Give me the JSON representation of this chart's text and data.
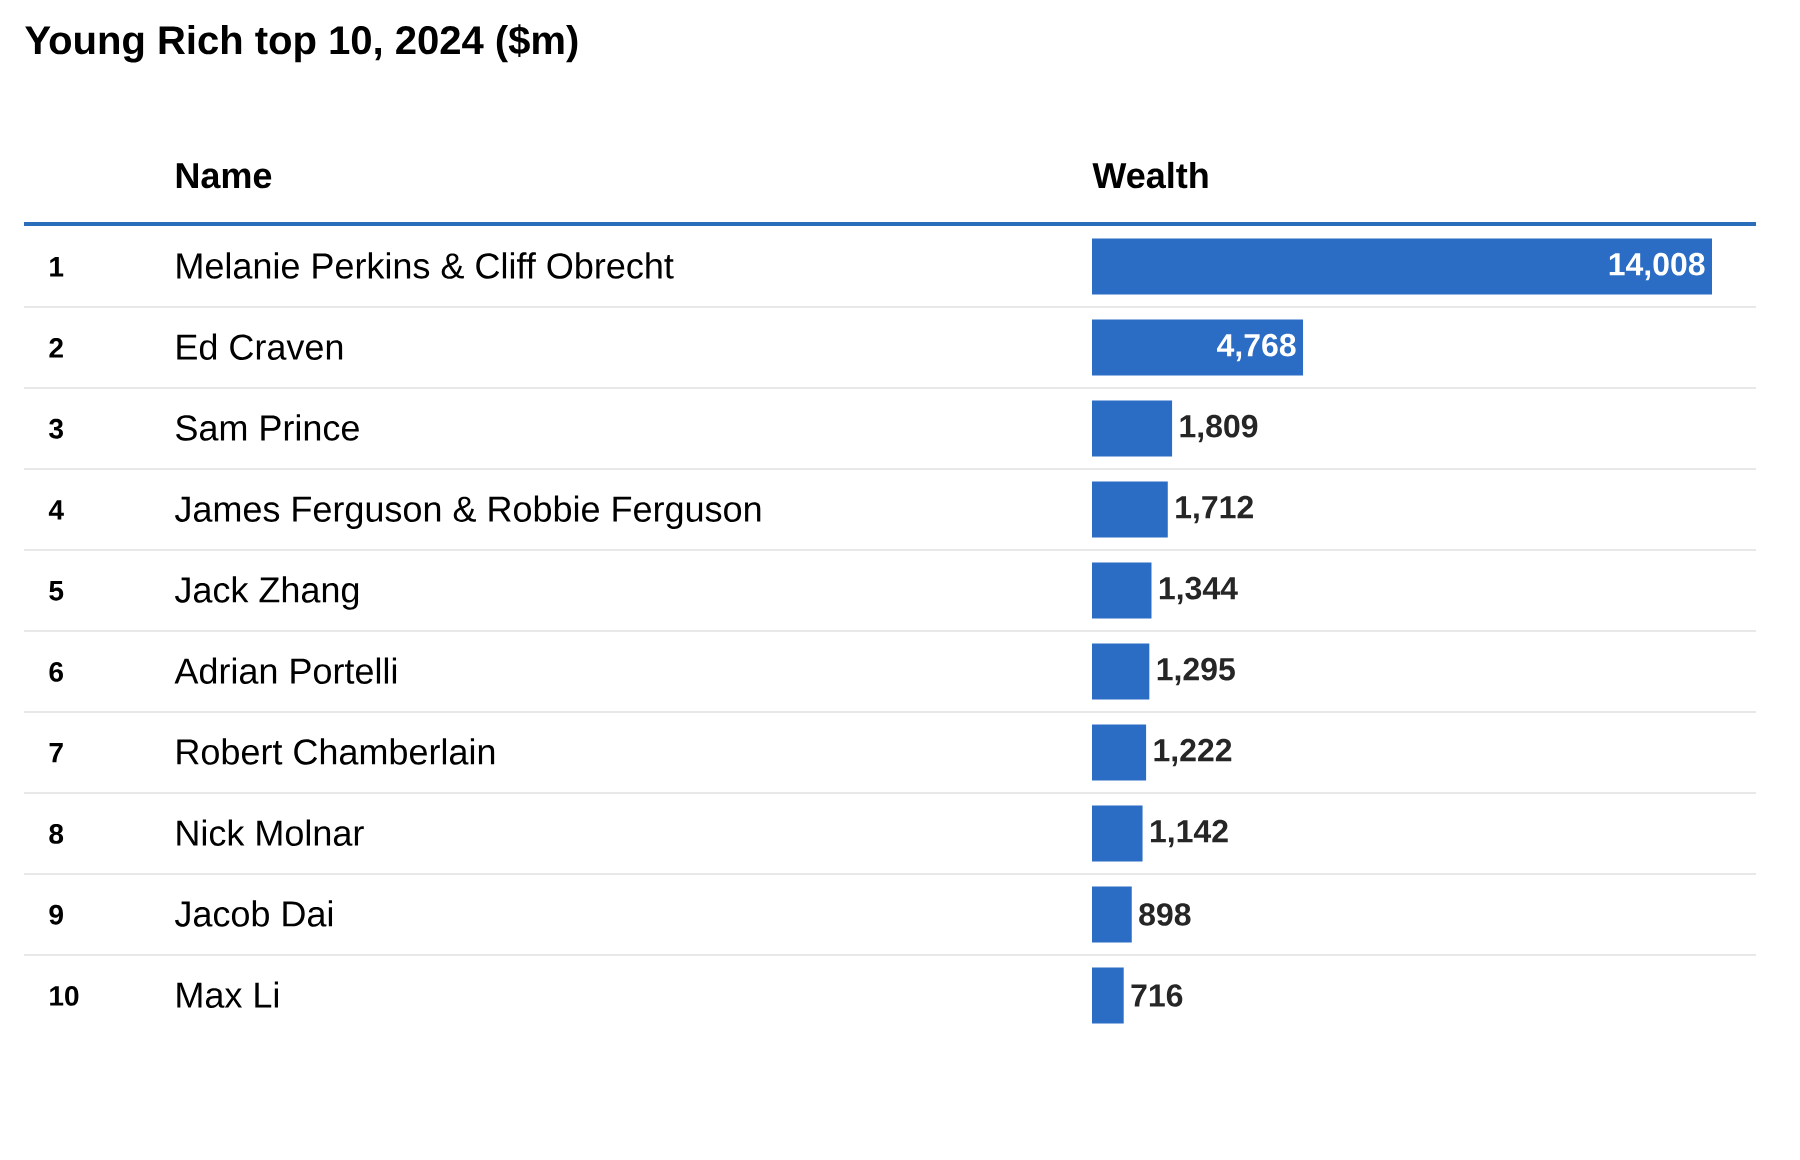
{
  "chart_data": {
    "type": "bar",
    "orientation": "horizontal",
    "title": "Young Rich top 10, 2024 ($m)",
    "categories": [
      "Melanie Perkins & Cliff Obrecht",
      "Ed Craven",
      "Sam Prince",
      "James Ferguson & Robbie Ferguson",
      "Jack Zhang",
      "Adrian Portelli",
      "Robert Chamberlain",
      "Nick Molnar",
      "Jacob Dai",
      "Max Li"
    ],
    "values": [
      14008,
      4768,
      1809,
      1712,
      1344,
      1295,
      1222,
      1142,
      898,
      716
    ],
    "value_labels": [
      "14,008",
      "4,768",
      "1,809",
      "1,712",
      "1,344",
      "1,295",
      "1,222",
      "1,142",
      "898",
      "716"
    ],
    "color": "#2b6cc4",
    "annotations": [
      "Name",
      "Wealth",
      "1",
      "2",
      "3",
      "4",
      "5",
      "6",
      "7",
      "8",
      "9",
      "10"
    ]
  }
}
